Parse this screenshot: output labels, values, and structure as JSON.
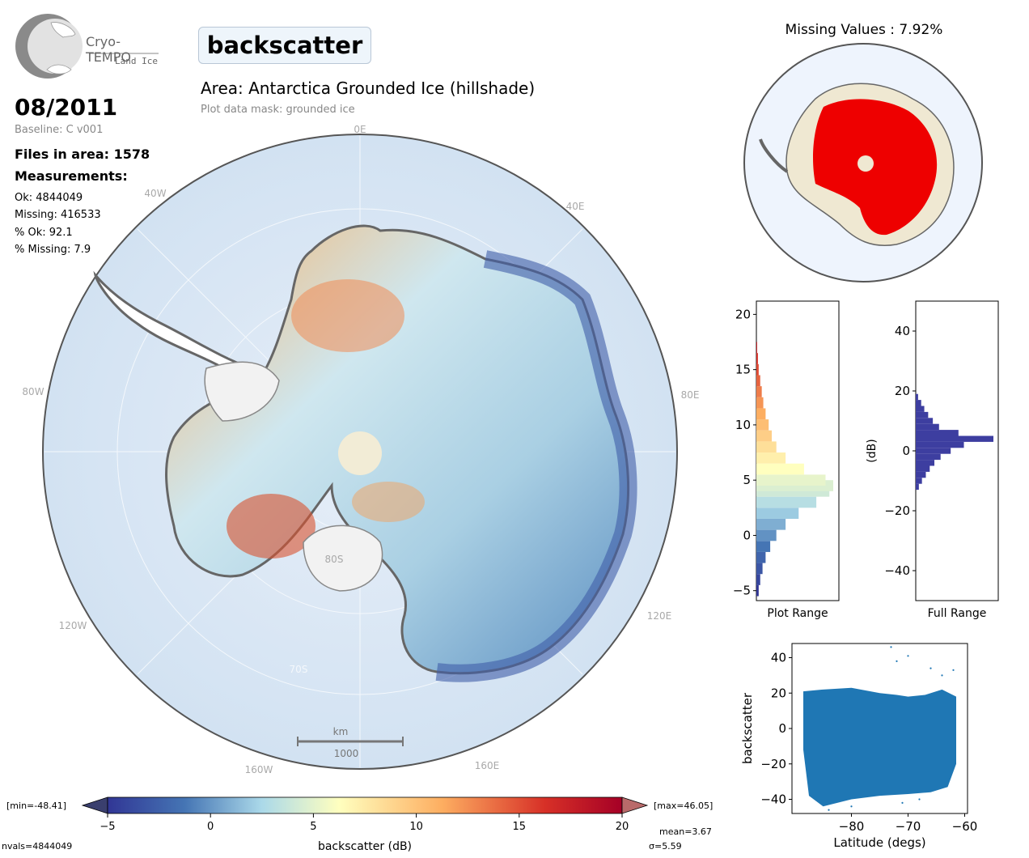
{
  "header": {
    "logo_name": "Cryo-TEMPO",
    "logo_sub": "Land Ice",
    "parameter": "backscatter",
    "date": "08/2011",
    "baseline": "Baseline: C v001",
    "files_in_area": "Files in area: 1578",
    "measurements_label": "Measurements:",
    "stats": [
      "Ok: 4844049",
      "Missing: 416533",
      "% Ok: 92.1",
      "% Missing: 7.9"
    ],
    "area_title": "Area: Antarctica Grounded Ice (hillshade)",
    "mask": "Plot data mask: grounded ice"
  },
  "map": {
    "lon_labels": [
      "0E",
      "40E",
      "80E",
      "120E",
      "160E",
      "160W",
      "120W",
      "80W",
      "40W"
    ],
    "lat_labels": [
      "80S",
      "70S"
    ],
    "scale_unit": "km",
    "scale_value": "1000"
  },
  "missing_map": {
    "title": "Missing Values : 7.92%"
  },
  "colorbar": {
    "min_label": "[min=-48.41]",
    "max_label": "[max=46.05]",
    "ticks": [
      "−5",
      "0",
      "5",
      "10",
      "15",
      "20"
    ],
    "label": "backscatter (dB)",
    "mean": "mean=3.67",
    "sigma": "σ=5.59",
    "nvals": "nvals=4844049",
    "colors": {
      "low": "#313695",
      "mid": "#ffffbf",
      "high": "#a50026"
    }
  },
  "chart_data": [
    {
      "type": "bar",
      "title": "",
      "xlabel": "Plot Range",
      "ylabel": "",
      "orientation": "horizontal",
      "ylim": [
        -5.9,
        21.2
      ],
      "yticks": [
        "−5",
        "0",
        "5",
        "10",
        "15",
        "20"
      ],
      "bins_center": [
        -5,
        -4,
        -3,
        -2,
        -1,
        0,
        1,
        2,
        3,
        4,
        4.5,
        5,
        6,
        7,
        8,
        9,
        10,
        11,
        12,
        13,
        14,
        15,
        16,
        17
      ],
      "counts": [
        0.03,
        0.05,
        0.08,
        0.12,
        0.18,
        0.26,
        0.38,
        0.55,
        0.78,
        0.95,
        1.0,
        0.9,
        0.62,
        0.38,
        0.26,
        0.2,
        0.16,
        0.12,
        0.09,
        0.07,
        0.05,
        0.03,
        0.02,
        0.01
      ]
    },
    {
      "type": "bar",
      "title": "",
      "xlabel": "Full Range",
      "ylabel": "(dB)",
      "orientation": "horizontal",
      "ylim": [
        -50,
        50
      ],
      "yticks": [
        "40",
        "20",
        "0",
        "−20",
        "−40"
      ],
      "bins_center": [
        -12,
        -10,
        -8,
        -6,
        -4,
        -2,
        0,
        2,
        4,
        6,
        8,
        10,
        12,
        14,
        16,
        18
      ],
      "counts": [
        0.04,
        0.08,
        0.13,
        0.18,
        0.24,
        0.32,
        0.45,
        0.62,
        1.0,
        0.55,
        0.3,
        0.22,
        0.16,
        0.11,
        0.07,
        0.03
      ],
      "color": "#3d3ea0"
    },
    {
      "type": "scatter",
      "title": "",
      "xlabel": "Latitude (degs)",
      "ylabel": "backscatter",
      "xlim": [
        -90.5,
        -59.5
      ],
      "ylim": [
        -48,
        48
      ],
      "xticks": [
        "−80",
        "−70",
        "−60"
      ],
      "yticks": [
        "40",
        "20",
        "0",
        "−20",
        "−40"
      ],
      "band_upper": [
        [
          -88.5,
          21
        ],
        [
          -85,
          22
        ],
        [
          -80,
          23
        ],
        [
          -75,
          20
        ],
        [
          -72,
          19
        ],
        [
          -70,
          18
        ],
        [
          -67,
          19
        ],
        [
          -64,
          22
        ],
        [
          -61.5,
          18
        ]
      ],
      "band_lower": [
        [
          -88.5,
          -12
        ],
        [
          -87.5,
          -38
        ],
        [
          -85,
          -44
        ],
        [
          -80,
          -40
        ],
        [
          -75,
          -38
        ],
        [
          -70,
          -37
        ],
        [
          -66,
          -36
        ],
        [
          -63,
          -33
        ],
        [
          -61.5,
          -20
        ]
      ],
      "color": "#1f77b4"
    }
  ]
}
